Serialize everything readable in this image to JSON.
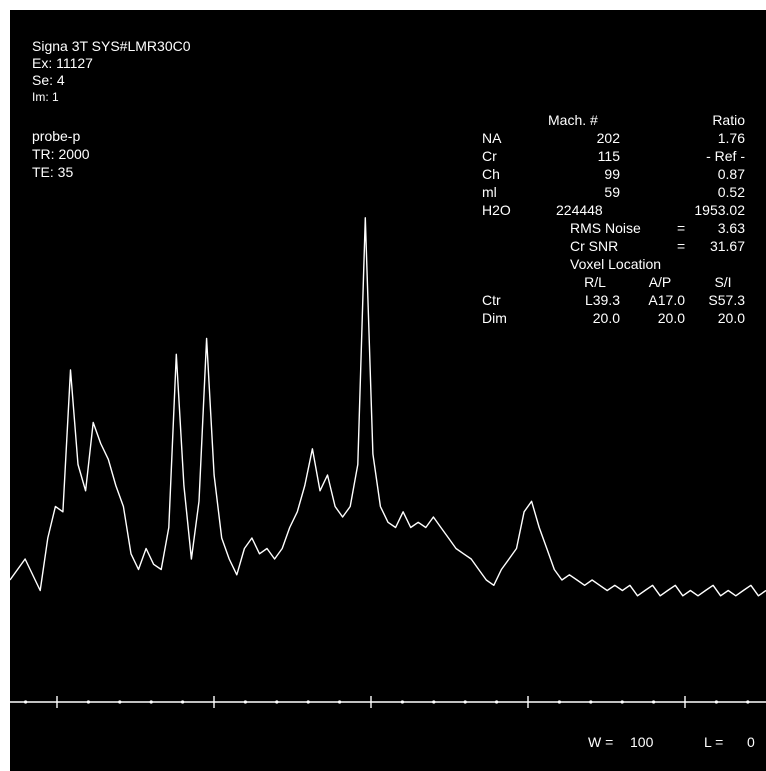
{
  "header": {
    "system": "Signa 3T SYS#LMR30C0",
    "exam": "Ex: 11127",
    "series": "Se: 4",
    "image": "Im: 1",
    "probe": "probe-p",
    "tr": "TR: 2000",
    "te": "TE: 35"
  },
  "table": {
    "col_mach": "Mach. #",
    "col_ratio": "Ratio",
    "rows": [
      {
        "name": "NA",
        "mach": "202",
        "ratio": "1.76"
      },
      {
        "name": "Cr",
        "mach": "115",
        "ratio": "- Ref -"
      },
      {
        "name": "Ch",
        "mach": "99",
        "ratio": "0.87"
      },
      {
        "name": "ml",
        "mach": "59",
        "ratio": "0.52"
      },
      {
        "name": "H2O",
        "mach": "224448",
        "ratio": "1953.02"
      }
    ]
  },
  "noise": {
    "rms_label": "RMS Noise",
    "rms_eq": "=",
    "rms_value": "3.63",
    "snr_label": "Cr SNR",
    "snr_eq": "=",
    "snr_value": "31.67"
  },
  "voxel": {
    "title": "Voxel Location",
    "col_rl": "R/L",
    "col_ap": "A/P",
    "col_si": "S/I",
    "ctr_label": "Ctr",
    "ctr_rl": "L39.3",
    "ctr_ap": "A17.0",
    "ctr_si": "S57.3",
    "dim_label": "Dim",
    "dim_rl": "20.0",
    "dim_ap": "20.0",
    "dim_si": "20.0"
  },
  "window": {
    "w_label": "W =",
    "w_value": "100",
    "l_label": "L =",
    "l_value": "0"
  },
  "colors": {
    "background": "#000000",
    "trace": "#ffffff"
  },
  "chart_data": {
    "type": "line",
    "title": "",
    "xlabel": "",
    "ylabel": "",
    "xlim": [
      0,
      100
    ],
    "ylim": [
      0,
      100
    ],
    "grid": false,
    "x_major_ticks": 5,
    "x_minor_ticks_per_major": 5,
    "series": [
      {
        "values": [
          [
            0,
            20
          ],
          [
            2,
            24
          ],
          [
            4,
            18
          ],
          [
            5,
            28
          ],
          [
            6,
            34
          ],
          [
            7,
            33
          ],
          [
            8,
            60
          ],
          [
            9,
            42
          ],
          [
            10,
            37
          ],
          [
            11,
            50
          ],
          [
            12,
            46
          ],
          [
            13,
            43
          ],
          [
            14,
            38
          ],
          [
            15,
            34
          ],
          [
            16,
            25
          ],
          [
            17,
            22
          ],
          [
            18,
            26
          ],
          [
            19,
            23
          ],
          [
            20,
            22
          ],
          [
            21,
            30
          ],
          [
            22,
            63
          ],
          [
            23,
            38
          ],
          [
            24,
            24
          ],
          [
            25,
            35
          ],
          [
            26,
            66
          ],
          [
            27,
            40
          ],
          [
            28,
            28
          ],
          [
            29,
            24
          ],
          [
            30,
            21
          ],
          [
            31,
            26
          ],
          [
            32,
            28
          ],
          [
            33,
            25
          ],
          [
            34,
            26
          ],
          [
            35,
            24
          ],
          [
            36,
            26
          ],
          [
            37,
            30
          ],
          [
            38,
            33
          ],
          [
            39,
            38
          ],
          [
            40,
            45
          ],
          [
            41,
            37
          ],
          [
            42,
            40
          ],
          [
            43,
            34
          ],
          [
            44,
            32
          ],
          [
            45,
            34
          ],
          [
            46,
            42
          ],
          [
            47,
            89
          ],
          [
            48,
            44
          ],
          [
            49,
            34
          ],
          [
            50,
            31
          ],
          [
            51,
            30
          ],
          [
            52,
            33
          ],
          [
            53,
            30
          ],
          [
            54,
            31
          ],
          [
            55,
            30
          ],
          [
            56,
            32
          ],
          [
            57,
            30
          ],
          [
            58,
            28
          ],
          [
            59,
            26
          ],
          [
            60,
            25
          ],
          [
            61,
            24
          ],
          [
            62,
            22
          ],
          [
            63,
            20
          ],
          [
            64,
            19
          ],
          [
            65,
            22
          ],
          [
            66,
            24
          ],
          [
            67,
            26
          ],
          [
            68,
            33
          ],
          [
            69,
            35
          ],
          [
            70,
            30
          ],
          [
            71,
            26
          ],
          [
            72,
            22
          ],
          [
            73,
            20
          ],
          [
            74,
            21
          ],
          [
            75,
            20
          ],
          [
            76,
            19
          ],
          [
            77,
            20
          ],
          [
            78,
            19
          ],
          [
            79,
            18
          ],
          [
            80,
            19
          ],
          [
            81,
            18
          ],
          [
            82,
            19
          ],
          [
            83,
            17
          ],
          [
            84,
            18
          ],
          [
            85,
            19
          ],
          [
            86,
            17
          ],
          [
            87,
            18
          ],
          [
            88,
            19
          ],
          [
            89,
            17
          ],
          [
            90,
            18
          ],
          [
            91,
            17
          ],
          [
            92,
            18
          ],
          [
            93,
            19
          ],
          [
            94,
            17
          ],
          [
            95,
            18
          ],
          [
            96,
            17
          ],
          [
            97,
            18
          ],
          [
            98,
            19
          ],
          [
            99,
            17
          ],
          [
            100,
            18
          ]
        ]
      }
    ]
  }
}
